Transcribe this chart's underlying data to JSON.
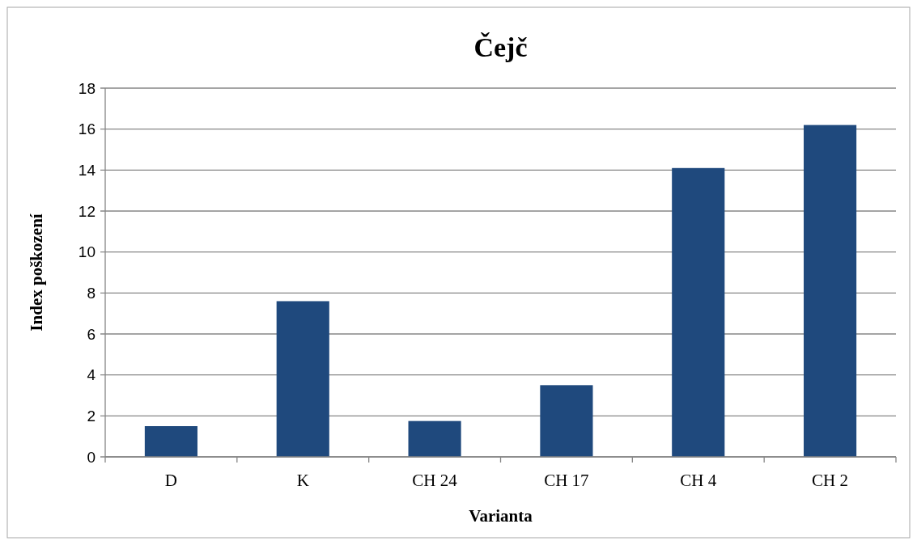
{
  "chart_data": {
    "type": "bar",
    "title": "Čejč",
    "xlabel": "Varianta",
    "ylabel": "Index poškození",
    "categories": [
      "D",
      "K",
      "CH 24",
      "CH 17",
      "CH 4",
      "CH 2"
    ],
    "values": [
      1.5,
      7.6,
      1.75,
      3.5,
      14.1,
      16.2
    ],
    "color": "#1f497d",
    "ylim": [
      0,
      18
    ],
    "yticks": [
      0,
      2,
      4,
      6,
      8,
      10,
      12,
      14,
      16,
      18
    ],
    "grid": "y"
  }
}
